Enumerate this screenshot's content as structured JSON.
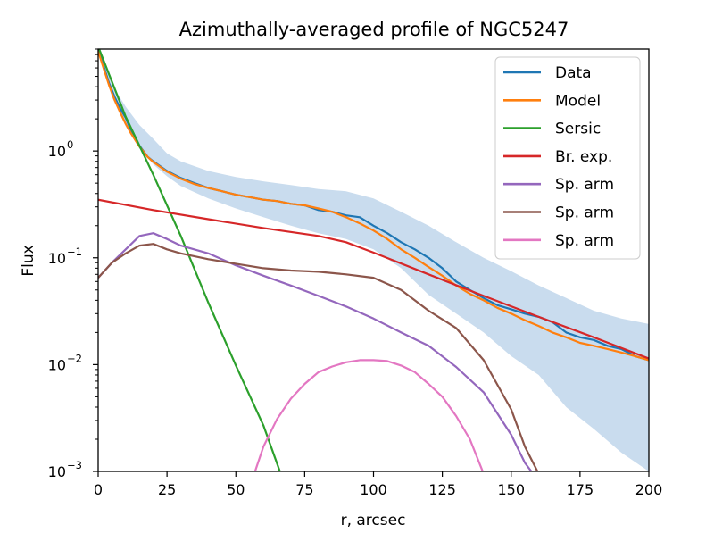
{
  "chart_data": {
    "type": "line",
    "title": "Azimuthally-averaged profile of NGC5247",
    "xlabel": "r, arcsec",
    "ylabel": "Flux",
    "xlim": [
      0,
      200
    ],
    "ylim": [
      0.001,
      9
    ],
    "yscale": "log",
    "grid": false,
    "legend_position": "top-right",
    "xticks": [
      0,
      25,
      50,
      75,
      100,
      125,
      150,
      175,
      200
    ],
    "xtick_labels": [
      "0",
      "25",
      "50",
      "75",
      "100",
      "125",
      "150",
      "175",
      "200"
    ],
    "yticks": [
      {
        "value": 1,
        "base": "10",
        "exp": "0"
      },
      {
        "value": 0.1,
        "base": "10",
        "exp": "−1"
      },
      {
        "value": 0.01,
        "base": "10",
        "exp": "−2"
      },
      {
        "value": 0.001,
        "base": "10",
        "exp": "−3"
      }
    ],
    "band": {
      "color": "#c9dcee",
      "x": [
        0,
        5,
        10,
        15,
        20,
        25,
        30,
        40,
        50,
        60,
        70,
        80,
        90,
        100,
        110,
        120,
        130,
        140,
        150,
        160,
        170,
        180,
        190,
        200
      ],
      "upper": [
        9.5,
        4.2,
        2.6,
        1.75,
        1.3,
        0.95,
        0.8,
        0.65,
        0.57,
        0.52,
        0.48,
        0.44,
        0.42,
        0.36,
        0.27,
        0.2,
        0.14,
        0.1,
        0.075,
        0.055,
        0.042,
        0.032,
        0.027,
        0.024
      ],
      "lower": [
        8.5,
        3.2,
        1.7,
        1.05,
        0.75,
        0.58,
        0.47,
        0.36,
        0.29,
        0.24,
        0.2,
        0.17,
        0.15,
        0.12,
        0.08,
        0.045,
        0.03,
        0.02,
        0.012,
        0.008,
        0.004,
        0.0025,
        0.0015,
        0.001
      ]
    },
    "series": [
      {
        "name": "Data",
        "color": "#1f77b4",
        "x": [
          0,
          2,
          4,
          6,
          8,
          10,
          12,
          15,
          18,
          20,
          25,
          30,
          35,
          40,
          45,
          50,
          55,
          60,
          65,
          70,
          75,
          80,
          85,
          90,
          95,
          100,
          105,
          110,
          115,
          120,
          125,
          130,
          135,
          140,
          145,
          150,
          155,
          160,
          165,
          170,
          175,
          180,
          185,
          190,
          195,
          200
        ],
        "y": [
          9.0,
          6.2,
          4.3,
          3.2,
          2.5,
          2.05,
          1.55,
          1.12,
          0.88,
          0.8,
          0.65,
          0.56,
          0.5,
          0.45,
          0.42,
          0.39,
          0.37,
          0.35,
          0.34,
          0.32,
          0.31,
          0.28,
          0.27,
          0.25,
          0.24,
          0.2,
          0.17,
          0.14,
          0.12,
          0.1,
          0.08,
          0.06,
          0.05,
          0.042,
          0.036,
          0.033,
          0.03,
          0.028,
          0.025,
          0.02,
          0.018,
          0.017,
          0.015,
          0.014,
          0.012,
          0.011
        ]
      },
      {
        "name": "Model",
        "color": "#ff7f0e",
        "x": [
          0,
          2,
          4,
          6,
          8,
          10,
          12,
          15,
          18,
          20,
          25,
          30,
          35,
          40,
          45,
          50,
          55,
          60,
          65,
          70,
          75,
          80,
          85,
          90,
          95,
          100,
          105,
          110,
          115,
          120,
          125,
          130,
          135,
          140,
          145,
          150,
          155,
          160,
          165,
          170,
          175,
          180,
          185,
          190,
          195,
          200
        ],
        "y": [
          8.6,
          5.9,
          4.1,
          3.0,
          2.3,
          1.8,
          1.45,
          1.1,
          0.88,
          0.79,
          0.64,
          0.55,
          0.49,
          0.45,
          0.42,
          0.39,
          0.37,
          0.35,
          0.34,
          0.32,
          0.31,
          0.29,
          0.27,
          0.24,
          0.21,
          0.18,
          0.15,
          0.12,
          0.1,
          0.082,
          0.068,
          0.055,
          0.046,
          0.04,
          0.034,
          0.03,
          0.026,
          0.023,
          0.02,
          0.018,
          0.016,
          0.015,
          0.014,
          0.013,
          0.012,
          0.011
        ]
      },
      {
        "name": "Sersic",
        "color": "#2ca02c",
        "x": [
          0,
          10,
          20,
          30,
          40,
          50,
          60,
          66
        ],
        "y": [
          9.5,
          2.1,
          0.6,
          0.16,
          0.038,
          0.0098,
          0.0027,
          0.001
        ]
      },
      {
        "name": "Br. exp.",
        "color": "#d62728",
        "x": [
          0,
          20,
          40,
          60,
          80,
          90,
          100,
          120,
          140,
          160,
          180,
          200
        ],
        "y": [
          0.35,
          0.28,
          0.23,
          0.19,
          0.16,
          0.14,
          0.112,
          0.07,
          0.044,
          0.028,
          0.018,
          0.0114
        ]
      },
      {
        "name": "Sp. arm",
        "color": "#9467bd",
        "x": [
          0,
          5,
          10,
          15,
          20,
          25,
          30,
          40,
          50,
          60,
          70,
          80,
          90,
          100,
          110,
          120,
          130,
          140,
          150,
          155,
          158
        ],
        "y": [
          0.065,
          0.09,
          0.12,
          0.16,
          0.17,
          0.15,
          0.13,
          0.11,
          0.085,
          0.068,
          0.055,
          0.044,
          0.035,
          0.027,
          0.02,
          0.015,
          0.0095,
          0.0055,
          0.0022,
          0.0012,
          0.00095
        ]
      },
      {
        "name": "Sp. arm",
        "color": "#8c564b",
        "x": [
          0,
          5,
          10,
          15,
          20,
          25,
          30,
          40,
          50,
          60,
          70,
          80,
          90,
          100,
          110,
          120,
          130,
          140,
          150,
          155,
          160
        ],
        "y": [
          0.065,
          0.09,
          0.11,
          0.13,
          0.135,
          0.12,
          0.11,
          0.097,
          0.088,
          0.08,
          0.076,
          0.074,
          0.07,
          0.065,
          0.05,
          0.032,
          0.022,
          0.011,
          0.0038,
          0.0017,
          0.00095
        ]
      },
      {
        "name": "Sp. arm",
        "color": "#e377c2",
        "x": [
          57,
          60,
          65,
          70,
          75,
          80,
          85,
          90,
          95,
          100,
          105,
          110,
          115,
          120,
          125,
          130,
          135,
          140
        ],
        "y": [
          0.001,
          0.0017,
          0.0031,
          0.0048,
          0.0066,
          0.0085,
          0.0096,
          0.0105,
          0.011,
          0.011,
          0.0108,
          0.0098,
          0.0085,
          0.0066,
          0.005,
          0.0033,
          0.002,
          0.00095
        ]
      }
    ]
  }
}
